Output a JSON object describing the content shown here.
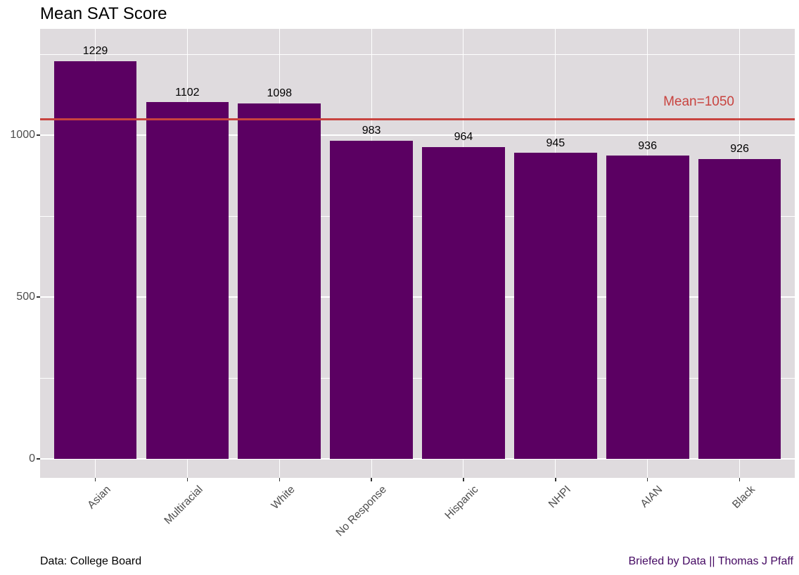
{
  "chart_data": {
    "type": "bar",
    "title": "Mean SAT Score",
    "categories": [
      "Asian",
      "Multiracial",
      "White",
      "No Response",
      "Hispanic",
      "NHPI",
      "AIAN",
      "Black"
    ],
    "values": [
      1229,
      1102,
      1098,
      983,
      964,
      945,
      936,
      926
    ],
    "bar_labels": [
      "1229",
      "1102",
      "1098",
      "983",
      "964",
      "945",
      "936",
      "926"
    ],
    "mean_line": {
      "value": 1050,
      "label": "Mean=1050"
    },
    "xlabel": "",
    "ylabel": "",
    "yticks": [
      0,
      500,
      1000
    ],
    "yticks_minor": [
      250,
      750,
      1250
    ],
    "ylim": [
      -61,
      1330
    ],
    "grid": true,
    "legend": "none",
    "caption_left": "Data: College Board",
    "caption_right": "Briefed by Data || Thomas J Pfaff",
    "colors": {
      "bar": "#5B0062",
      "mean_line": "#C8433F",
      "mean_label": "#C8433F",
      "panel_background": "#DFDBDE",
      "gridline": "#FFFFFF",
      "axis_text": "#4D4D4D",
      "tick_mark": "#333333",
      "title": "#000000",
      "caption_right": "#440862"
    }
  }
}
